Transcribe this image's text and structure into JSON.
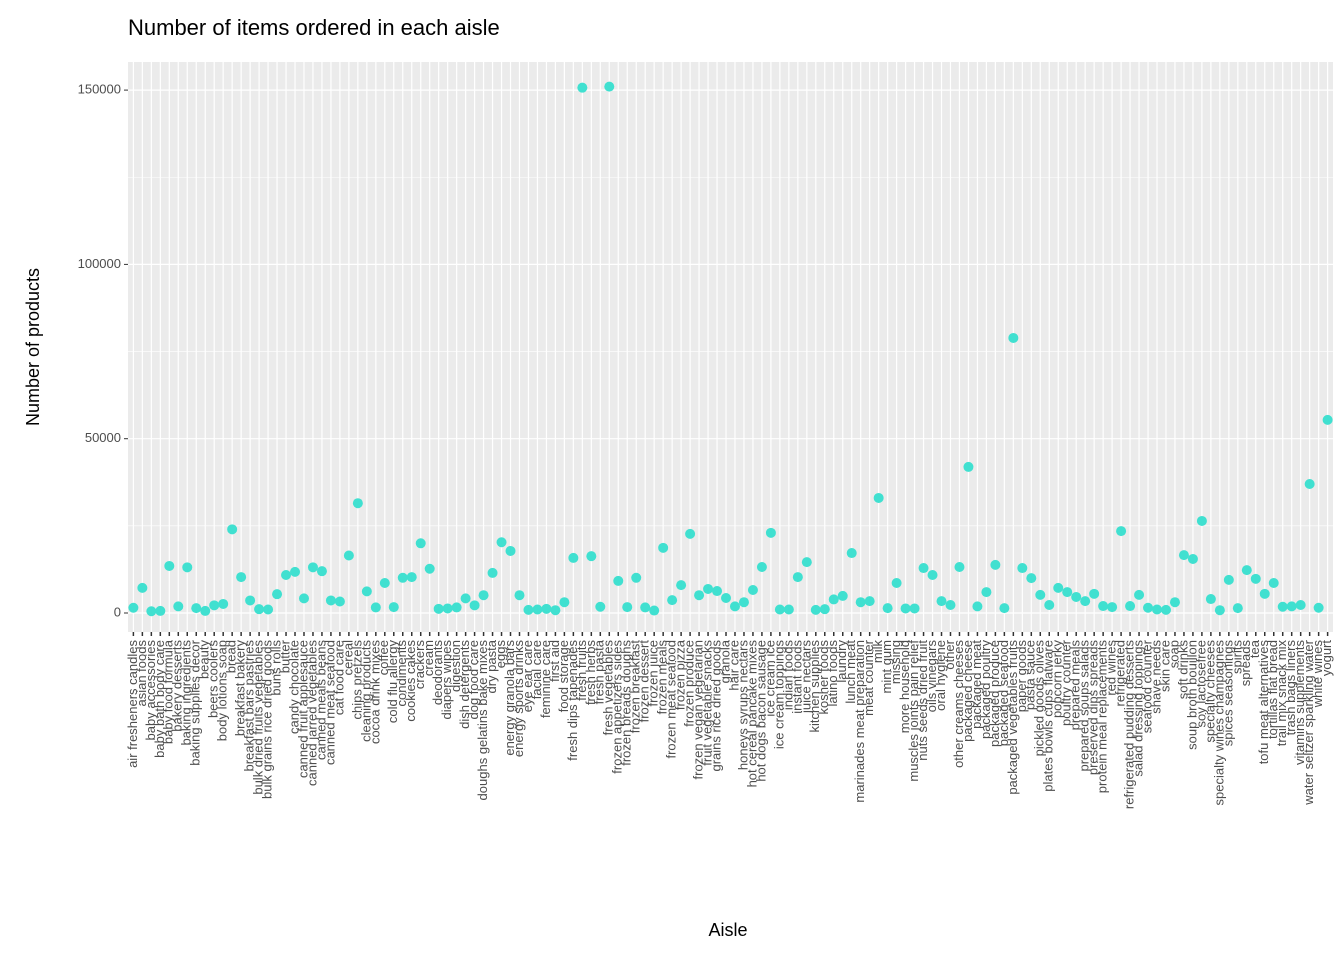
{
  "chart_data": {
    "type": "scatter",
    "title": "Number of items ordered in each aisle",
    "x_label": "Aisle",
    "y_label": "Number of products",
    "color": "#40E0D0",
    "grid": true,
    "ylim": [
      -5450,
      158060
    ],
    "yticks": [
      0,
      50000,
      100000,
      150000
    ],
    "categories": [
      "air fresheners candles",
      "asian foods",
      "baby accessories",
      "baby bath body care",
      "baby food formula",
      "bakery desserts",
      "baking ingredients",
      "baking supplies decor",
      "beauty",
      "beers coolers",
      "body lotions soap",
      "bread",
      "breakfast bakery",
      "breakfast bars pastries",
      "bulk dried fruits vegetables",
      "bulk grains rice dried goods",
      "buns rolls",
      "butter",
      "candy chocolate",
      "canned fruit applesauce",
      "canned jarred vegetables",
      "canned meals beans",
      "canned meat seafood",
      "cat food care",
      "cereal",
      "chips pretzels",
      "cleaning products",
      "cocoa drink mixes",
      "coffee",
      "cold flu allergy",
      "condiments",
      "cookies cakes",
      "crackers",
      "cream",
      "deodorants",
      "diapers wipes",
      "digestion",
      "dish detergents",
      "dog food care",
      "doughs gelatins bake mixes",
      "dry pasta",
      "eggs",
      "energy granola bars",
      "energy sports drinks",
      "eye ear care",
      "facial care",
      "feminine care",
      "first aid",
      "food storage",
      "fresh dips tapenades",
      "fresh fruits",
      "fresh herbs",
      "fresh pasta",
      "fresh vegetables",
      "frozen appetizers sides",
      "frozen breads doughs",
      "frozen breakfast",
      "frozen dessert",
      "frozen juice",
      "frozen meals",
      "frozen meat seafood",
      "frozen pizza",
      "frozen produce",
      "frozen vegan vegetarian",
      "fruit vegetable snacks",
      "grains rice dried goods",
      "granola",
      "hair care",
      "honeys syrups nectars",
      "hot cereal pancake mixes",
      "hot dogs bacon sausage",
      "ice cream ice",
      "ice cream toppings",
      "indian foods",
      "instant foods",
      "juice nectars",
      "kitchen supplies",
      "kosher foods",
      "latino foods",
      "laundry",
      "lunch meat",
      "marinades meat preparation",
      "meat counter",
      "milk",
      "mint gum",
      "missing",
      "more household",
      "muscles joints pain relief",
      "nuts seeds dried fruit",
      "oils vinegars",
      "oral hygiene",
      "other",
      "other creams cheeses",
      "packaged cheese",
      "packaged meat",
      "packaged poultry",
      "packaged produce",
      "packaged seafood",
      "packaged vegetables fruits",
      "paper goods",
      "pasta sauce",
      "pickled goods olives",
      "plates bowls cups flatware",
      "popcorn jerky",
      "poultry counter",
      "prepared meals",
      "prepared soups salads",
      "preserved dips spreads",
      "protein meal replacements",
      "red wines",
      "refrigerated",
      "refrigerated pudding desserts",
      "salad dressing toppings",
      "seafood counter",
      "shave needs",
      "skin care",
      "soap",
      "soft drinks",
      "soup broth bouillon",
      "soy lactosefree",
      "specialty cheeses",
      "specialty wines champagnes",
      "spices seasonings",
      "spirits",
      "spreads",
      "tea",
      "tofu meat alternatives",
      "tortillas flat bread",
      "trail mix snack mix",
      "trash bags liners",
      "vitamins supplements",
      "water seltzer sparkling water",
      "white wines",
      "yogurt"
    ],
    "values": [
      1500,
      7200,
      500,
      600,
      13500,
      1900,
      13100,
      1400,
      600,
      2200,
      2600,
      24000,
      10300,
      3600,
      1100,
      1000,
      5400,
      10900,
      11800,
      4200,
      13100,
      12000,
      3600,
      3300,
      16500,
      31500,
      6200,
      1600,
      8600,
      1700,
      10100,
      10300,
      20000,
      12700,
      1200,
      1300,
      1600,
      4200,
      2200,
      5100,
      11500,
      20300,
      17800,
      5100,
      900,
      1000,
      1200,
      800,
      3100,
      15800,
      150700,
      16300,
      1800,
      151000,
      9200,
      1700,
      10100,
      1600,
      700,
      18700,
      3700,
      8000,
      22700,
      5100,
      6900,
      6300,
      4300,
      1900,
      3100,
      6600,
      13200,
      23000,
      1000,
      1000,
      10300,
      14600,
      900,
      1100,
      3900,
      4900,
      17200,
      3100,
      3400,
      33000,
      1400,
      8600,
      1300,
      1300,
      12900,
      10900,
      3400,
      2300,
      13200,
      41900,
      1900,
      6000,
      13800,
      1400,
      78900,
      12900,
      10000,
      5200,
      2300,
      7200,
      6000,
      4600,
      3400,
      5500,
      2000,
      1700,
      23500,
      2000,
      5200,
      1500,
      1000,
      900,
      3100,
      16600,
      15500,
      26400,
      4000,
      800,
      9500,
      1400,
      12300,
      9800,
      5500,
      8600,
      1800,
      1900,
      2300,
      37000,
      1500,
      55400
    ]
  }
}
